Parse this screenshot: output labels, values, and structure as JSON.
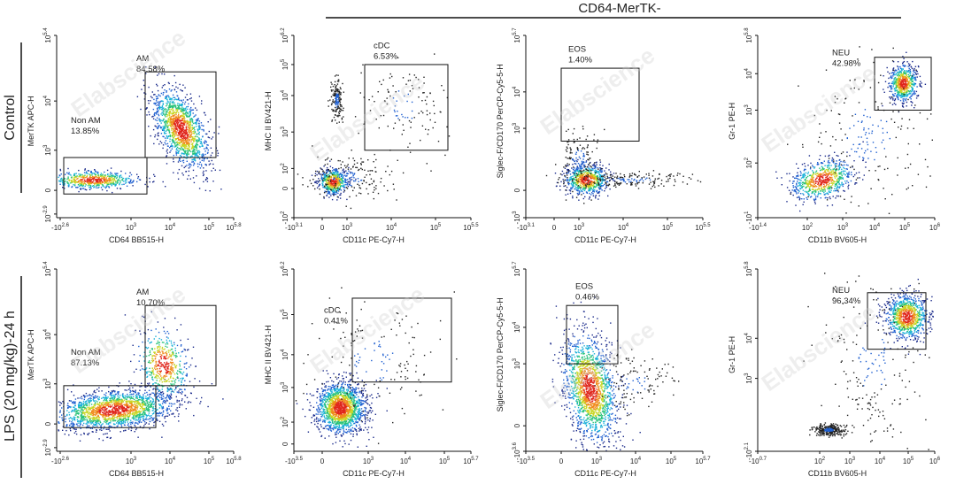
{
  "header": {
    "title": "CD64-MerTK-"
  },
  "rows": [
    {
      "label": "Control"
    },
    {
      "label": "LPS (20 mg/kg)-24 h"
    }
  ],
  "watermark": "Elabscience",
  "chart_data": [
    {
      "type": "scatter",
      "row": 0,
      "col": 0,
      "xlabel": "CD64 BB515-H",
      "ylabel": "MerTK APC-H",
      "x_ticks": [
        {
          "v": "-10",
          "e": "2.6"
        },
        {
          "v": "10",
          "e": "3"
        },
        {
          "v": "10",
          "e": "4"
        },
        {
          "v": "10",
          "e": "5"
        },
        {
          "v": "10",
          "e": "5.8"
        }
      ],
      "y_ticks": [
        {
          "v": "10",
          "e": "-2.9"
        },
        {
          "v": "0",
          "e": ""
        },
        {
          "v": "10",
          "e": "3"
        },
        {
          "v": "10",
          "e": "4"
        },
        {
          "v": "10",
          "e": "5.4"
        }
      ],
      "gates": [
        {
          "name": "AM",
          "percent": "84.58%"
        },
        {
          "name": "Non AM",
          "percent": "13.85%"
        }
      ]
    },
    {
      "type": "scatter",
      "row": 0,
      "col": 1,
      "xlabel": "CD11c PE-Cy7-H",
      "ylabel": "MHC II BV421-H",
      "x_ticks": [
        {
          "v": "-10",
          "e": "3.1"
        },
        {
          "v": "0",
          "e": ""
        },
        {
          "v": "10",
          "e": "3"
        },
        {
          "v": "10",
          "e": "4"
        },
        {
          "v": "10",
          "e": "5"
        },
        {
          "v": "10",
          "e": "5.5"
        }
      ],
      "y_ticks": [
        {
          "v": "-10",
          "e": "2"
        },
        {
          "v": "0",
          "e": ""
        },
        {
          "v": "10",
          "e": "2"
        },
        {
          "v": "10",
          "e": "3"
        },
        {
          "v": "10",
          "e": "4"
        },
        {
          "v": "10",
          "e": "5"
        },
        {
          "v": "10",
          "e": "6.2"
        }
      ],
      "gates": [
        {
          "name": "cDC",
          "percent": "6.53%"
        }
      ]
    },
    {
      "type": "scatter",
      "row": 0,
      "col": 2,
      "xlabel": "CD11c PE-Cy7-H",
      "ylabel": "Siglec-F/CD170 PerCP-Cy5-5-H",
      "x_ticks": [
        {
          "v": "-10",
          "e": "3.1"
        },
        {
          "v": "0",
          "e": ""
        },
        {
          "v": "10",
          "e": "3"
        },
        {
          "v": "10",
          "e": "4"
        },
        {
          "v": "10",
          "e": "5"
        },
        {
          "v": "10",
          "e": "5.5"
        }
      ],
      "y_ticks": [
        {
          "v": "-10",
          "e": "3"
        },
        {
          "v": "0",
          "e": ""
        },
        {
          "v": "10",
          "e": "3"
        },
        {
          "v": "10",
          "e": "4"
        },
        {
          "v": "10",
          "e": "5.7"
        }
      ],
      "gates": [
        {
          "name": "EOS",
          "percent": "1.40%"
        }
      ]
    },
    {
      "type": "scatter",
      "row": 0,
      "col": 3,
      "xlabel": "CD11b BV605-H",
      "ylabel": "Gr-1 PE-H",
      "x_ticks": [
        {
          "v": "-10",
          "e": "1.4"
        },
        {
          "v": "10",
          "e": "2"
        },
        {
          "v": "10",
          "e": "3"
        },
        {
          "v": "10",
          "e": "4"
        },
        {
          "v": "10",
          "e": "5"
        },
        {
          "v": "10",
          "e": "6"
        }
      ],
      "y_ticks": [
        {
          "v": "-10",
          "e": "1"
        },
        {
          "v": "10",
          "e": "2"
        },
        {
          "v": "10",
          "e": "3"
        },
        {
          "v": "10",
          "e": "4"
        },
        {
          "v": "10",
          "e": "5.8"
        }
      ],
      "gates": [
        {
          "name": "NEU",
          "percent": "42.98%"
        }
      ]
    },
    {
      "type": "scatter",
      "row": 1,
      "col": 0,
      "xlabel": "CD64 BB515-H",
      "ylabel": "MerTK APC-H",
      "x_ticks": [
        {
          "v": "-10",
          "e": "2.6"
        },
        {
          "v": "10",
          "e": "3"
        },
        {
          "v": "10",
          "e": "4"
        },
        {
          "v": "10",
          "e": "5"
        },
        {
          "v": "10",
          "e": "5.8"
        }
      ],
      "y_ticks": [
        {
          "v": "10",
          "e": "-2.9"
        },
        {
          "v": "0",
          "e": ""
        },
        {
          "v": "10",
          "e": "3"
        },
        {
          "v": "10",
          "e": "4"
        },
        {
          "v": "10",
          "e": "5.4"
        }
      ],
      "gates": [
        {
          "name": "AM",
          "percent": "10.70%"
        },
        {
          "name": "Non AM",
          "percent": "87.13%"
        }
      ]
    },
    {
      "type": "scatter",
      "row": 1,
      "col": 1,
      "xlabel": "CD11c PE-Cy7-H",
      "ylabel": "MHC II BV421-H",
      "x_ticks": [
        {
          "v": "-10",
          "e": "3.5"
        },
        {
          "v": "0",
          "e": ""
        },
        {
          "v": "10",
          "e": "3"
        },
        {
          "v": "10",
          "e": "4"
        },
        {
          "v": "10",
          "e": "5"
        },
        {
          "v": "10",
          "e": "5.7"
        }
      ],
      "y_ticks": [
        {
          "v": "0",
          "e": ""
        },
        {
          "v": "10",
          "e": "2"
        },
        {
          "v": "10",
          "e": "3"
        },
        {
          "v": "10",
          "e": "4"
        },
        {
          "v": "10",
          "e": "5"
        },
        {
          "v": "10",
          "e": "6.2"
        }
      ],
      "gates": [
        {
          "name": "cDC",
          "percent": "0.41%"
        }
      ]
    },
    {
      "type": "scatter",
      "row": 1,
      "col": 2,
      "xlabel": "CD11c PE-Cy7-H",
      "ylabel": "Siglec-F/CD170 PerCP-Cy5-5-H",
      "x_ticks": [
        {
          "v": "-10",
          "e": "3.5"
        },
        {
          "v": "0",
          "e": ""
        },
        {
          "v": "10",
          "e": "3"
        },
        {
          "v": "10",
          "e": "4"
        },
        {
          "v": "10",
          "e": "5"
        },
        {
          "v": "10",
          "e": "5.7"
        }
      ],
      "y_ticks": [
        {
          "v": "-10",
          "e": "3.6"
        },
        {
          "v": "0",
          "e": ""
        },
        {
          "v": "10",
          "e": "3"
        },
        {
          "v": "10",
          "e": "4"
        },
        {
          "v": "10",
          "e": "5.7"
        }
      ],
      "gates": [
        {
          "name": "EOS",
          "percent": "0.46%"
        }
      ]
    },
    {
      "type": "scatter",
      "row": 1,
      "col": 3,
      "xlabel": "CD11b BV605-H",
      "ylabel": "Gr-1 PE-H",
      "x_ticks": [
        {
          "v": "-10",
          "e": "0.7"
        },
        {
          "v": "10",
          "e": "2"
        },
        {
          "v": "10",
          "e": "3"
        },
        {
          "v": "10",
          "e": "4"
        },
        {
          "v": "10",
          "e": "5"
        },
        {
          "v": "10",
          "e": "6"
        }
      ],
      "y_ticks": [
        {
          "v": "-10",
          "e": "2.1"
        },
        {
          "v": "10",
          "e": "3"
        },
        {
          "v": "10",
          "e": "4"
        },
        {
          "v": "10",
          "e": "5.8"
        }
      ],
      "gates": [
        {
          "name": "NEU",
          "percent": "96.34%"
        }
      ]
    }
  ]
}
